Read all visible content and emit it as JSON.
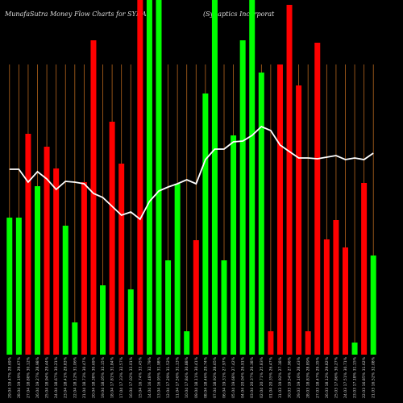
{
  "chart_data": {
    "type": "bar",
    "title": "MunafaSutra  Money Flow  Charts for SYNA",
    "subtitle": "(Synaptics Incorporat",
    "categories": [
      "29.04 19.47% 28.69%",
      "28.04 19.19% 29.67%",
      "27.04 18.88% 30.12%",
      "26.04 19.27% 28.98%",
      "25.04 18.94% 29.44%",
      "24.04 18.67% 30.21%",
      "23.04 18.41% 29.83%",
      "22.04 18.12% 31.06%",
      "21.04 18.73% 30.47%",
      "20.04 18.38% 30.69%",
      "19.04 18.05% 32.15%",
      "18.04 17.81% 31.84%",
      "17.04 17.33% 32.57%",
      "16.04 17.02% 33.01%",
      "15.04 16.74% 33.45%",
      "14.04 16.48% 32.79%",
      "13.04 16.95% 31.98%",
      "12.04 17.29% 31.52%",
      "11.04 17.56% 31.13%",
      "10.04 17.84% 30.88%",
      "09.04 18.11% 30.41%",
      "08.04 18.46% 29.74%",
      "07.04 18.92% 28.65%",
      "06.04 19.31% 27.97%",
      "05.04 19.68% 27.42%",
      "04.04 20.04% 26.91%",
      "03.04 20.37% 26.38%",
      "02.04 20.71% 25.83%",
      "01.04 20.35% 26.47%",
      "31.03 19.92% 27.18%",
      "30.03 19.54% 27.96%",
      "29.03 19.16% 28.43%",
      "28.03 18.83% 28.89%",
      "27.03 18.47% 29.35%",
      "26.03 18.12% 29.82%",
      "25.03 17.86% 30.27%",
      "24.03 17.51% 30.71%",
      "23.03 17.18% 31.15%",
      "22.03 16.85% 31.62%",
      "21.03 16.52% 32.08%"
    ],
    "values": [
      170,
      170,
      274,
      209,
      258,
      231,
      160,
      40,
      214,
      390,
      86,
      289,
      237,
      81,
      440,
      440,
      440,
      117,
      212,
      29,
      142,
      324,
      440,
      117,
      272,
      390,
      440,
      350,
      29,
      360,
      434,
      334,
      29,
      387,
      143,
      167,
      133,
      15,
      213,
      123
    ],
    "colors": [
      "#00ff00",
      "#00ff00",
      "#ff0000",
      "#00ff00",
      "#ff0000",
      "#ff0000",
      "#00ff00",
      "#00ff00",
      "#ff0000",
      "#ff0000",
      "#00ff00",
      "#ff0000",
      "#ff0000",
      "#00ff00",
      "#ff0000",
      "#00ff00",
      "#00ff00",
      "#00ff00",
      "#00ff00",
      "#00ff00",
      "#ff0000",
      "#00ff00",
      "#00ff00",
      "#00ff00",
      "#00ff00",
      "#00ff00",
      "#00ff00",
      "#00ff00",
      "#ff0000",
      "#ff0000",
      "#ff0000",
      "#ff0000",
      "#ff0000",
      "#ff0000",
      "#ff0000",
      "#ff0000",
      "#ff0000",
      "#00ff00",
      "#ff0000",
      "#00ff00"
    ],
    "line_values": [
      230,
      230,
      214,
      227,
      218,
      205,
      215,
      214,
      212,
      200,
      195,
      184,
      173,
      177,
      168,
      190,
      203,
      208,
      212,
      217,
      212,
      242,
      255,
      255,
      264,
      265,
      272,
      283,
      278,
      260,
      252,
      244,
      244,
      243,
      245,
      247,
      242,
      244,
      242,
      250
    ],
    "line_color": "#ffffff",
    "grid_color": "#b5651d",
    "ylim": [
      0,
      440
    ]
  }
}
